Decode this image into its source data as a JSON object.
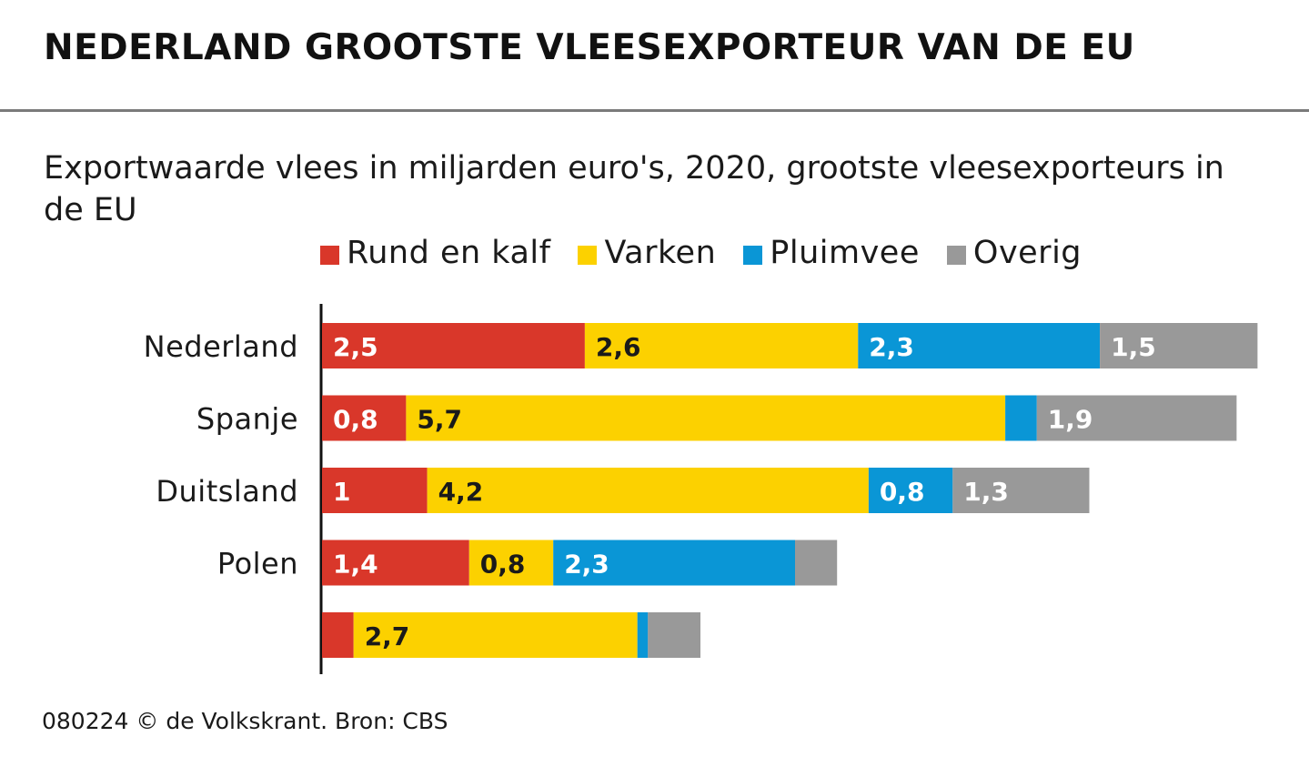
{
  "title": "NEDERLAND GROOTSTE VLEESEXPORTEUR VAN DE EU",
  "subtitle": "Exportwaarde vlees in miljarden euro's, 2020, grootste vleesexporteurs in de EU",
  "footer": "080224 © de Volkskrant. Bron: CBS",
  "chart_data": {
    "type": "bar",
    "orientation": "horizontal",
    "stacked": true,
    "title": "NEDERLAND GROOTSTE VLEESEXPORTEUR VAN DE EU",
    "subtitle": "Exportwaarde vlees in miljarden euro's, 2020, grootste vleesexporteurs in de EU",
    "xlabel": "",
    "ylabel": "",
    "xlim": [
      0,
      9
    ],
    "grid": false,
    "legend_position": "top",
    "categories": [
      "Nederland",
      "Spanje",
      "Duitsland",
      "Polen",
      ""
    ],
    "series": [
      {
        "name": "Rund en kalf",
        "color": "#d9372a",
        "label_color": "#ffffff",
        "values": [
          2.5,
          0.8,
          1.0,
          1.4,
          0.3
        ],
        "labels": [
          "2,5",
          "0,8",
          "1",
          "1,4",
          ""
        ]
      },
      {
        "name": "Varken",
        "color": "#fcd100",
        "label_color": "#1a1a1a",
        "values": [
          2.6,
          5.7,
          4.2,
          0.8,
          2.7
        ],
        "labels": [
          "2,6",
          "5,7",
          "4,2",
          "0,8",
          "2,7"
        ]
      },
      {
        "name": "Pluimvee",
        "color": "#0a96d6",
        "label_color": "#ffffff",
        "values": [
          2.3,
          0.3,
          0.8,
          2.3,
          0.1
        ],
        "labels": [
          "2,3",
          "",
          "0,8",
          "2,3",
          ""
        ]
      },
      {
        "name": "Overig",
        "color": "#999999",
        "label_color": "#ffffff",
        "values": [
          1.5,
          1.9,
          1.3,
          0.4,
          0.5
        ],
        "labels": [
          "1,5",
          "1,9",
          "1,3",
          "",
          ""
        ]
      }
    ]
  }
}
